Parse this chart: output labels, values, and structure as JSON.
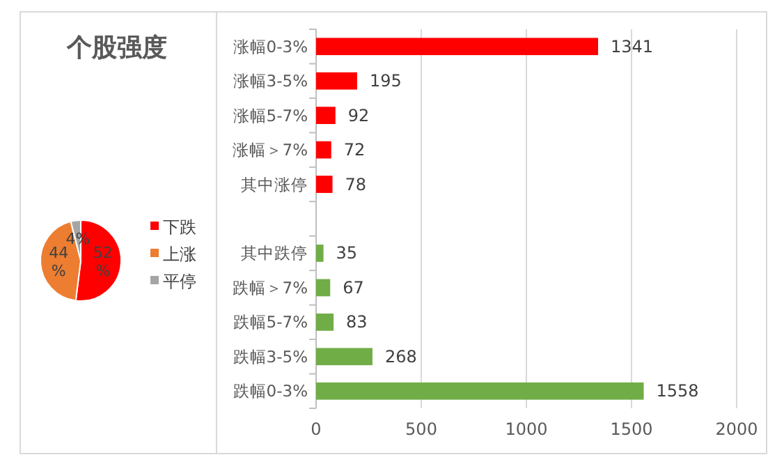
{
  "chart_data": [
    {
      "type": "pie",
      "title": "个股强度",
      "categories": [
        "下跌",
        "上涨",
        "平停"
      ],
      "values": [
        52,
        44,
        4
      ],
      "value_labels": [
        "52%",
        "44%",
        "4%"
      ],
      "colors": [
        "#ff0000",
        "#ed7d31",
        "#a5a5a5"
      ],
      "legend": "right"
    },
    {
      "type": "bar",
      "orientation": "horizontal",
      "categories": [
        "涨幅0-3%",
        "涨幅3-5%",
        "涨幅5-7%",
        "涨幅＞7%",
        "其中涨停",
        null,
        "其中跌停",
        "跌幅＞7%",
        "跌幅5-7%",
        "跌幅3-5%",
        "跌幅0-3%"
      ],
      "values": [
        1341,
        195,
        92,
        72,
        78,
        null,
        35,
        67,
        83,
        268,
        1558
      ],
      "colors": [
        "#ff0000",
        "#ff0000",
        "#ff0000",
        "#ff0000",
        "#ff0000",
        null,
        "#70ad47",
        "#70ad47",
        "#70ad47",
        "#70ad47",
        "#70ad47"
      ],
      "xlim": [
        0,
        2000
      ],
      "xticks": [
        0,
        500,
        1000,
        1500,
        2000
      ],
      "grid": "x",
      "data_labels": true
    }
  ]
}
